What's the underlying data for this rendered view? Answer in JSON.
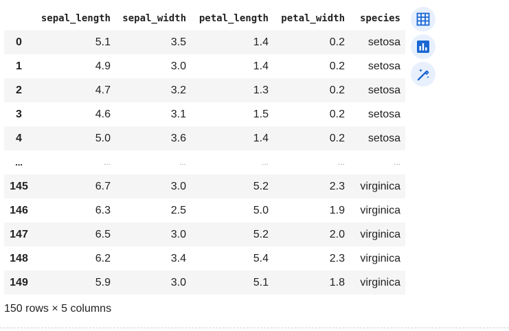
{
  "dataframe": {
    "columns": [
      "",
      "sepal_length",
      "sepal_width",
      "petal_length",
      "petal_width",
      "species"
    ],
    "rows": [
      {
        "index": "0",
        "cells": [
          "5.1",
          "3.5",
          "1.4",
          "0.2",
          "setosa"
        ]
      },
      {
        "index": "1",
        "cells": [
          "4.9",
          "3.0",
          "1.4",
          "0.2",
          "setosa"
        ]
      },
      {
        "index": "2",
        "cells": [
          "4.7",
          "3.2",
          "1.3",
          "0.2",
          "setosa"
        ]
      },
      {
        "index": "3",
        "cells": [
          "4.6",
          "3.1",
          "1.5",
          "0.2",
          "setosa"
        ]
      },
      {
        "index": "4",
        "cells": [
          "5.0",
          "3.6",
          "1.4",
          "0.2",
          "setosa"
        ]
      },
      {
        "index": "...",
        "cells": [
          "...",
          "...",
          "...",
          "...",
          "..."
        ]
      },
      {
        "index": "145",
        "cells": [
          "6.7",
          "3.0",
          "5.2",
          "2.3",
          "virginica"
        ]
      },
      {
        "index": "146",
        "cells": [
          "6.3",
          "2.5",
          "5.0",
          "1.9",
          "virginica"
        ]
      },
      {
        "index": "147",
        "cells": [
          "6.5",
          "3.0",
          "5.2",
          "2.0",
          "virginica"
        ]
      },
      {
        "index": "148",
        "cells": [
          "6.2",
          "3.4",
          "5.4",
          "2.3",
          "virginica"
        ]
      },
      {
        "index": "149",
        "cells": [
          "5.9",
          "3.0",
          "5.1",
          "1.8",
          "virginica"
        ]
      }
    ],
    "summary": "150 rows × 5 columns"
  },
  "toolbar": {
    "buttons": [
      {
        "icon": "table-icon"
      },
      {
        "icon": "bar-chart-icon"
      },
      {
        "icon": "magic-wand-icon"
      }
    ]
  },
  "colors": {
    "accent": "#1967d2",
    "button_bg": "#e8f0fe",
    "stripe": "#f5f5f5"
  }
}
